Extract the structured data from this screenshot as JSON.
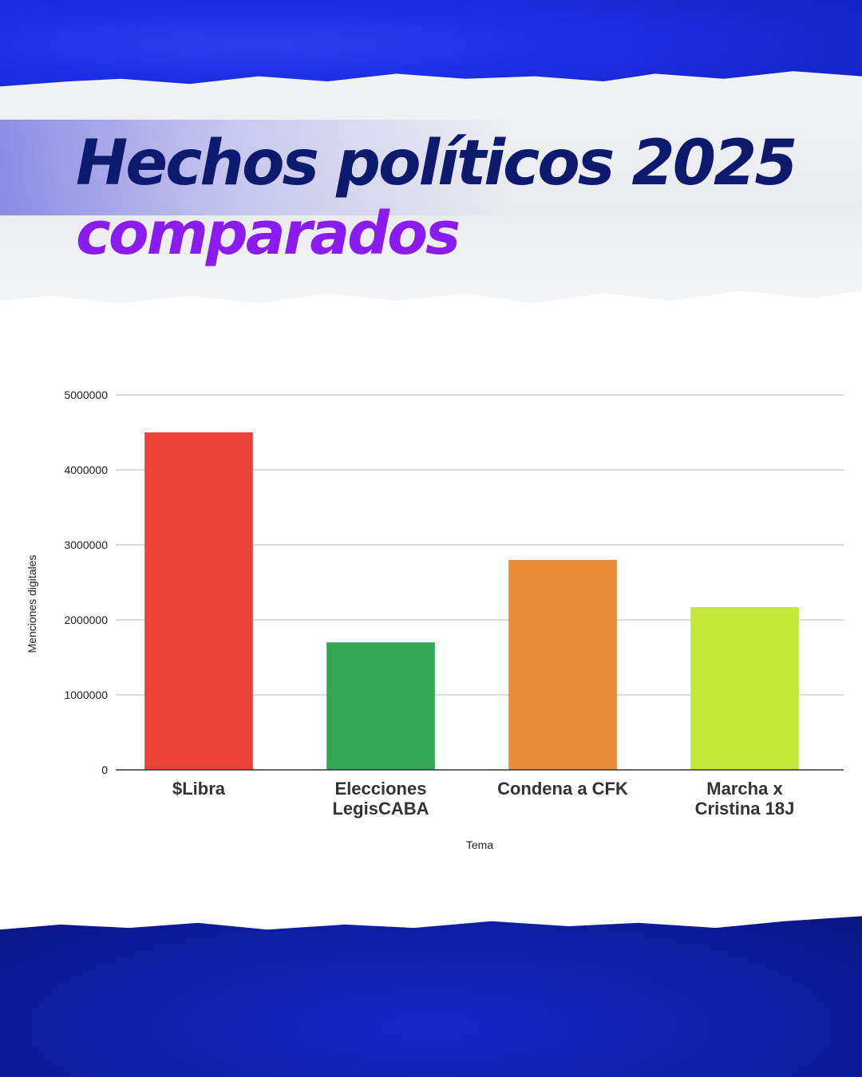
{
  "header": {
    "title_line1": "Hechos políticos 2025",
    "title_line2": "comparados"
  },
  "colors": {
    "title_primary": "#0e1a6e",
    "title_accent": "#8a1cf0",
    "band": "#1a2ce0"
  },
  "chart_data": {
    "type": "bar",
    "categories": [
      "$Libra",
      "Elecciones LegisCABA",
      "Condena a CFK",
      "Marcha x Cristina 18J"
    ],
    "category_lines": [
      [
        "$Libra"
      ],
      [
        "Elecciones",
        "LegisCABA"
      ],
      [
        "Condena a CFK"
      ],
      [
        "Marcha x",
        "Cristina 18J"
      ]
    ],
    "values": [
      4500000,
      1700000,
      2800000,
      2170000
    ],
    "colors": [
      "#ea4335",
      "#34a853",
      "#e98c35",
      "#c5e93a"
    ],
    "xlabel": "Tema",
    "ylabel": "Menciones digitales",
    "ylim": [
      0,
      5000000
    ],
    "yticks": [
      0,
      1000000,
      2000000,
      3000000,
      4000000,
      5000000
    ],
    "grid": true,
    "legend": "none"
  }
}
